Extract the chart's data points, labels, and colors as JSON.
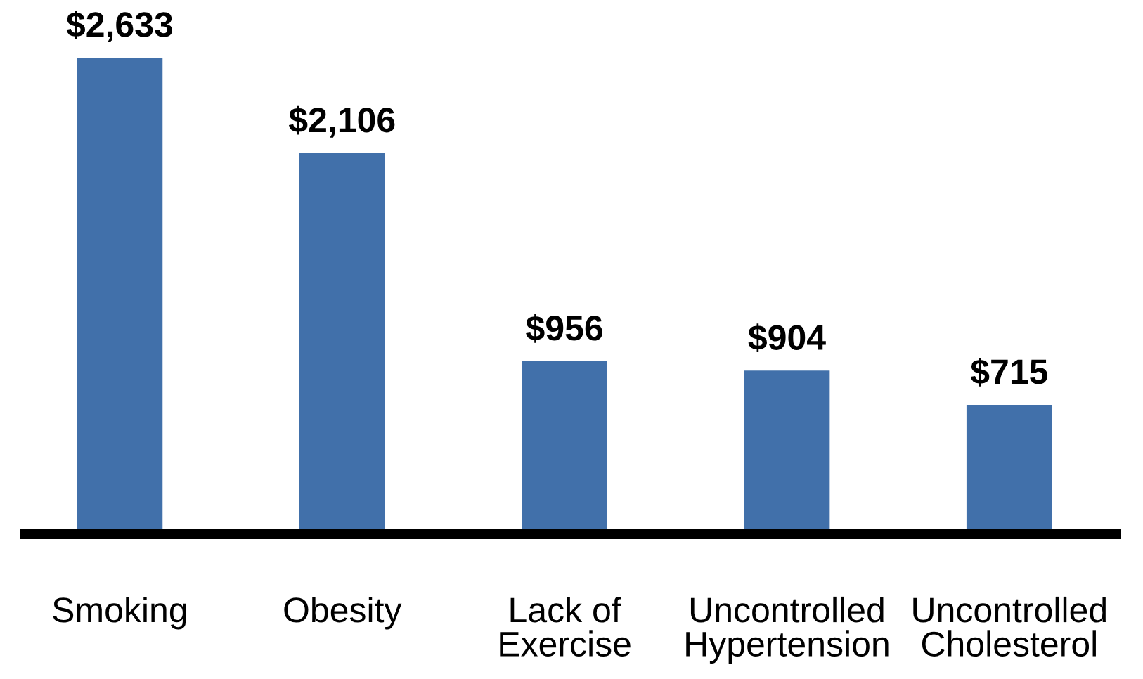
{
  "chart_data": {
    "type": "bar",
    "categories": [
      "Smoking",
      "Obesity",
      "Lack of\nExercise",
      "Uncontrolled\nHypertension",
      "Uncontrolled\nCholesterol"
    ],
    "values": [
      2633,
      2106,
      956,
      904,
      715
    ],
    "value_labels": [
      "$2,633",
      "$2,106",
      "$956",
      "$904",
      "$715"
    ],
    "color": "#4170aa",
    "tick_labels": "x"
  }
}
